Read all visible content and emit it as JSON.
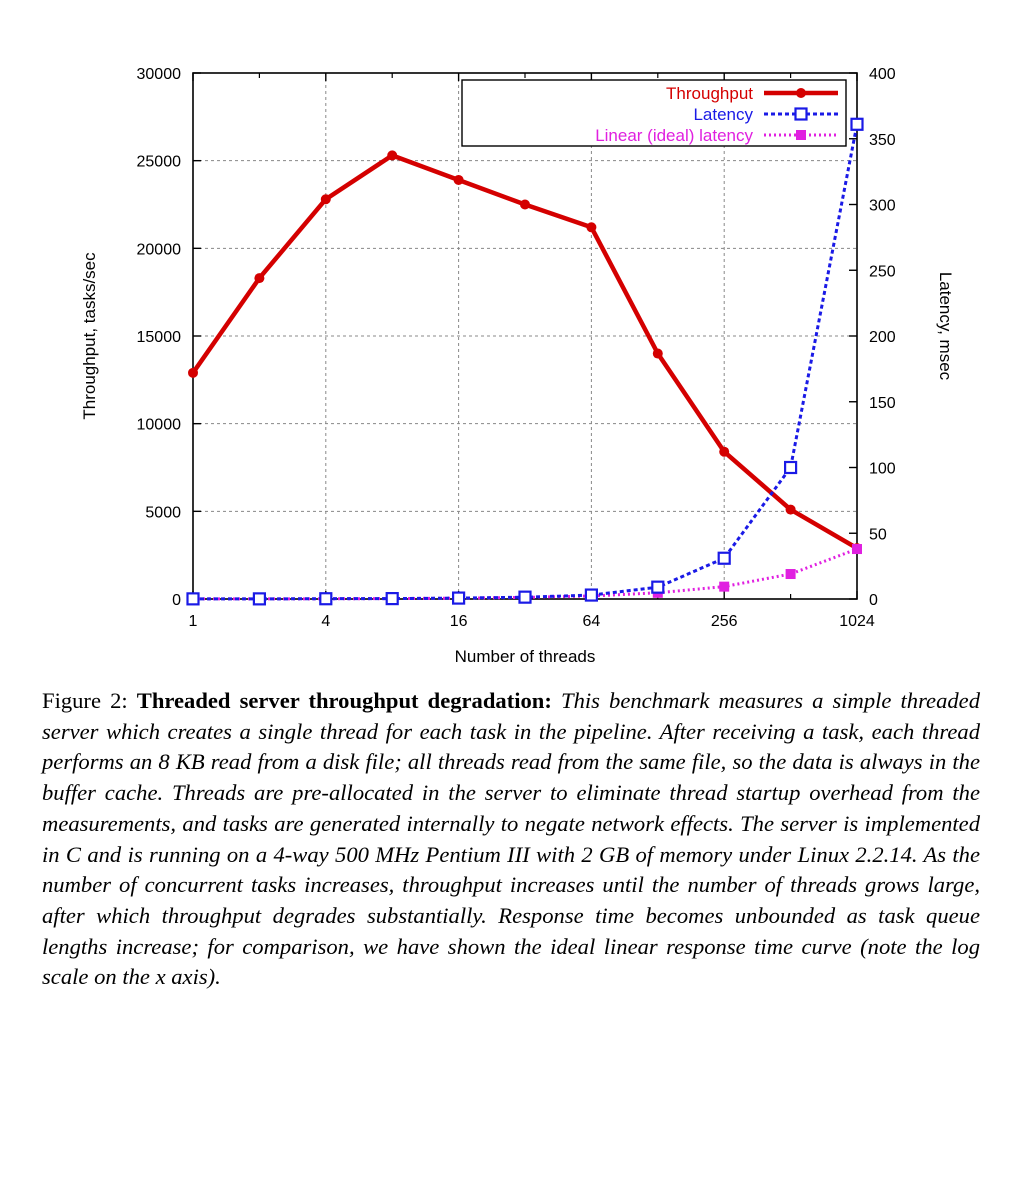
{
  "chart_data": {
    "type": "line",
    "title": "",
    "xlabel": "Number of threads",
    "ylabel": "Throughput, tasks/sec",
    "y2label": "Latency, msec",
    "x_scale": "log2",
    "xlim": [
      1,
      1024
    ],
    "ylim": [
      0,
      30000
    ],
    "y2lim": [
      0,
      400
    ],
    "x_ticks": [
      "1",
      "4",
      "16",
      "64",
      "256",
      "1024"
    ],
    "x_tick_values": [
      1,
      4,
      16,
      64,
      256,
      1024
    ],
    "y_ticks": [
      "0",
      "5000",
      "10000",
      "15000",
      "20000",
      "25000",
      "30000"
    ],
    "y_tick_values": [
      0,
      5000,
      10000,
      15000,
      20000,
      25000,
      30000
    ],
    "y2_ticks": [
      "0",
      "50",
      "100",
      "150",
      "200",
      "250",
      "300",
      "350",
      "400"
    ],
    "y2_tick_values": [
      0,
      50,
      100,
      150,
      200,
      250,
      300,
      350,
      400
    ],
    "grid": true,
    "legend_position": "top-right",
    "series": [
      {
        "name": "Throughput",
        "axis": "left",
        "color": "#d40000",
        "style": "solid",
        "marker": "dot",
        "x": [
          1,
          2,
          4,
          8,
          16,
          32,
          64,
          128,
          256,
          512,
          1024
        ],
        "y": [
          12900,
          18300,
          22800,
          25300,
          23900,
          22500,
          21200,
          14000,
          8400,
          5100,
          2900
        ]
      },
      {
        "name": "Latency",
        "axis": "right",
        "color": "#1a1ae6",
        "style": "dashed",
        "marker": "open-square",
        "x": [
          1,
          2,
          4,
          8,
          16,
          32,
          64,
          128,
          256,
          512,
          1024
        ],
        "y": [
          0.1,
          0.1,
          0.2,
          0.3,
          0.7,
          1.4,
          3,
          9,
          31,
          100,
          361
        ]
      },
      {
        "name": "Linear (ideal) latency",
        "axis": "right",
        "color": "#e020e0",
        "style": "dotted",
        "marker": "filled-square",
        "x": [
          1,
          2,
          4,
          8,
          16,
          32,
          64,
          128,
          256,
          512,
          1024
        ],
        "y": [
          0.04,
          0.07,
          0.15,
          0.3,
          0.6,
          1.2,
          2.3,
          4.7,
          9.4,
          19,
          38
        ]
      }
    ]
  },
  "caption": {
    "label": "Figure 2:",
    "title": "Threaded server throughput degradation:",
    "body": "This benchmark measures a simple threaded server which creates a single thread for each task in the pipeline. After receiving a task, each thread performs an 8 KB read from a disk file; all threads read from the same file, so the data is always in the buffer cache. Threads are pre-allocated in the server to eliminate thread startup overhead from the measurements, and tasks are generated internally to negate network effects. The server is implemented in C and is running on a 4-way 500 MHz Pentium III with 2 GB of memory under Linux 2.2.14. As the number of concurrent tasks increases, throughput increases until the number of threads grows large, after which throughput degrades substantially. Response time becomes unbounded as task queue lengths increase; for comparison, we have shown the ideal linear response time curve (note the log scale on the x axis)."
  }
}
